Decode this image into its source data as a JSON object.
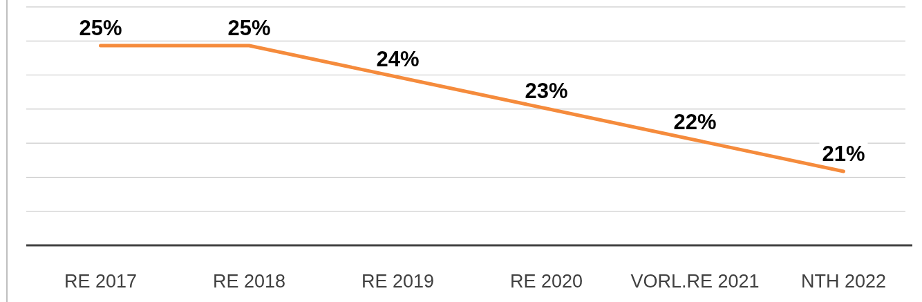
{
  "chart_data": {
    "type": "line",
    "categories": [
      "RE 2017",
      "RE 2018",
      "RE 2019",
      "RE 2020",
      "VORL.RE 2021",
      "NTH 2022"
    ],
    "series": [
      {
        "color": "#f58b3c",
        "values": [
          25,
          25,
          24,
          23,
          22,
          21
        ],
        "value_labels": [
          "25%",
          "25%",
          "24%",
          "23%",
          "22%",
          "21%"
        ]
      }
    ],
    "grid": "y",
    "tick_labels": "x",
    "line_style": "solid"
  }
}
